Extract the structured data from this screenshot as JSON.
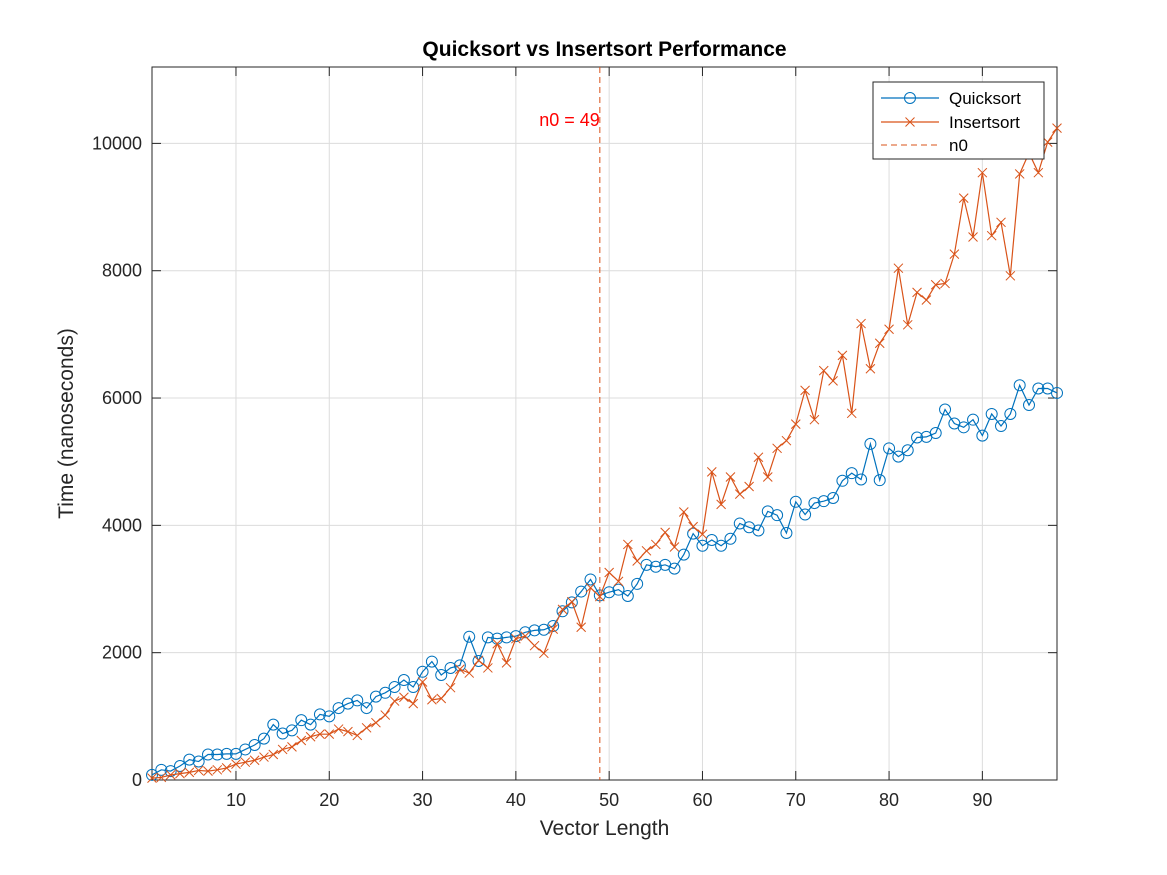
{
  "chart_data": {
    "type": "line",
    "title": "Quicksort vs Insertsort Performance",
    "xlabel": "Vector Length",
    "ylabel": "Time (nanoseconds)",
    "xlim": [
      1,
      98
    ],
    "ylim": [
      0,
      11200
    ],
    "xticks": [
      10,
      20,
      30,
      40,
      50,
      60,
      70,
      80,
      90
    ],
    "yticks": [
      0,
      2000,
      4000,
      6000,
      8000,
      10000
    ],
    "grid": true,
    "legend_position": "top-right",
    "x": [
      1,
      2,
      3,
      4,
      5,
      6,
      7,
      8,
      9,
      10,
      11,
      12,
      13,
      14,
      15,
      16,
      17,
      18,
      19,
      20,
      21,
      22,
      23,
      24,
      25,
      26,
      27,
      28,
      29,
      30,
      31,
      32,
      33,
      34,
      35,
      36,
      37,
      38,
      39,
      40,
      41,
      42,
      43,
      44,
      45,
      46,
      47,
      48,
      49,
      50,
      51,
      52,
      53,
      54,
      55,
      56,
      57,
      58,
      59,
      60,
      61,
      62,
      63,
      64,
      65,
      66,
      67,
      68,
      69,
      70,
      71,
      72,
      73,
      74,
      75,
      76,
      77,
      78,
      79,
      80,
      81,
      82,
      83,
      84,
      85,
      86,
      87,
      88,
      89,
      90,
      91,
      92,
      93,
      94,
      95,
      96,
      97,
      98
    ],
    "series": [
      {
        "name": "Quicksort",
        "color": "#0072BD",
        "marker": "circle",
        "values": [
          80,
          160,
          140,
          220,
          320,
          290,
          400,
          400,
          410,
          410,
          480,
          550,
          650,
          870,
          730,
          780,
          940,
          870,
          1030,
          1000,
          1130,
          1200,
          1250,
          1130,
          1310,
          1370,
          1460,
          1570,
          1460,
          1700,
          1860,
          1650,
          1760,
          1800,
          2250,
          1870,
          2240,
          2220,
          2240,
          2260,
          2320,
          2350,
          2360,
          2420,
          2650,
          2790,
          2960,
          3150,
          2900,
          2950,
          2990,
          2890,
          3080,
          3380,
          3350,
          3380,
          3320,
          3540,
          3870,
          3680,
          3770,
          3680,
          3790,
          4030,
          3970,
          3920,
          4220,
          4160,
          3880,
          4370,
          4170,
          4350,
          4380,
          4430,
          4700,
          4820,
          4720,
          5280,
          4710,
          5210,
          5080,
          5180,
          5380,
          5390,
          5450,
          5820,
          5600,
          5540,
          5660,
          5410,
          5750,
          5560,
          5750,
          6200,
          5890,
          6150,
          6150,
          6080
        ]
      },
      {
        "name": "Insertsort",
        "color": "#D95319",
        "marker": "x",
        "values": [
          30,
          40,
          80,
          100,
          120,
          150,
          140,
          160,
          190,
          250,
          280,
          310,
          360,
          400,
          480,
          520,
          620,
          680,
          720,
          720,
          800,
          760,
          700,
          820,
          900,
          1020,
          1240,
          1300,
          1200,
          1540,
          1260,
          1280,
          1450,
          1740,
          1680,
          1880,
          1760,
          2140,
          1840,
          2220,
          2260,
          2110,
          1990,
          2370,
          2680,
          2800,
          2400,
          3020,
          2880,
          3260,
          3120,
          3700,
          3440,
          3600,
          3700,
          3890,
          3660,
          4210,
          3980,
          3860,
          4840,
          4330,
          4760,
          4490,
          4610,
          5070,
          4760,
          5210,
          5330,
          5590,
          6120,
          5660,
          6430,
          6270,
          6670,
          5760,
          7170,
          6460,
          6860,
          7080,
          8040,
          7150,
          7660,
          7540,
          7780,
          7800,
          8260,
          9140,
          8530,
          9540,
          8550,
          8760,
          7920,
          9520,
          9850,
          9540,
          10020,
          10240
        ]
      }
    ],
    "reference_line": {
      "name": "n0",
      "x": 49,
      "color": "#D95319",
      "style": "dashed",
      "label": "n0 = 49",
      "label_color": "#ff0000"
    }
  }
}
